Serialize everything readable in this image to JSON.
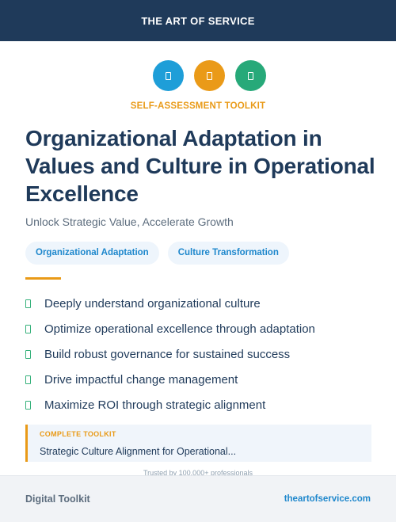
{
  "header": {
    "title": "THE ART OF SERVICE"
  },
  "icons": [
    {
      "name": "document-icon",
      "color": "#1e9ed8"
    },
    {
      "name": "document-icon",
      "color": "#ea9a18"
    },
    {
      "name": "document-icon",
      "color": "#27a979"
    }
  ],
  "kicker": "SELF-ASSESSMENT TOOLKIT",
  "title": "Organizational Adaptation in Values and Culture in Operational Excellence",
  "subtitle": "Unlock Strategic Value, Accelerate Growth",
  "tags": [
    "Organizational Adaptation",
    "Culture Transformation"
  ],
  "benefits": [
    "Deeply understand organizational culture",
    "Optimize operational excellence through adaptation",
    "Build robust governance for sustained success",
    "Drive impactful change management",
    "Maximize ROI through strategic alignment"
  ],
  "toolkit": {
    "label": "COMPLETE TOOLKIT",
    "name": "Strategic Culture Alignment for Operational..."
  },
  "trusted": "Trusted by 100,000+ professionals",
  "footer": {
    "left": "Digital Toolkit",
    "right": "theartofservice.com"
  },
  "colors": {
    "navy": "#1f3a5a",
    "accent_orange": "#e99a17",
    "link_blue": "#1e87cc",
    "check_green": "#34b07a"
  }
}
